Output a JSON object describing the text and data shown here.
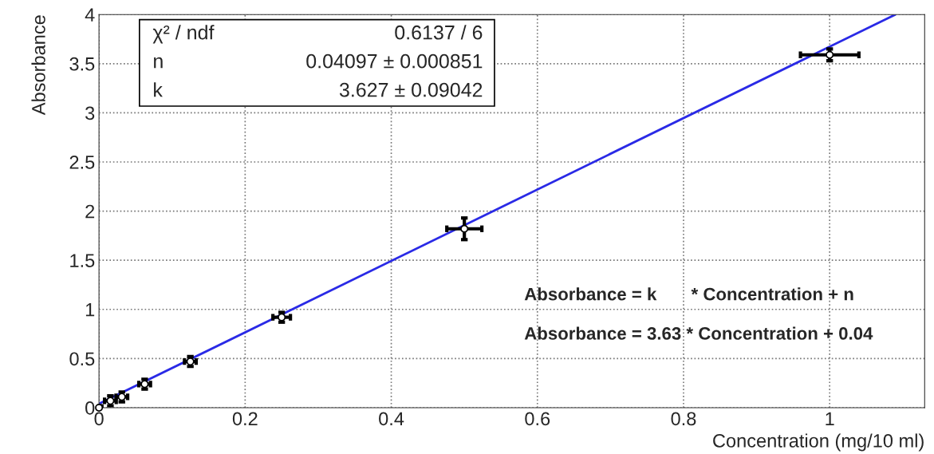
{
  "chart_data": {
    "type": "scatter",
    "xlabel": "Concentration (mg/10 ml)",
    "ylabel": "Absorbance",
    "x": [
      0,
      0.0156,
      0.03125,
      0.0625,
      0.125,
      0.25,
      0.5,
      1
    ],
    "series": [
      {
        "color": "#000000",
        "marker": "circle",
        "values": [
          0,
          0.07,
          0.11,
          0.24,
          0.47,
          0.92,
          1.82,
          3.59
        ],
        "errors": [
          0.02,
          0.05,
          0.05,
          0.05,
          0.05,
          0.05,
          0.11,
          0.06
        ],
        "xerrors": [
          0.004,
          0.008,
          0.008,
          0.008,
          0.008,
          0.012,
          0.024,
          0.04
        ]
      },
      {
        "type": "line",
        "color": "#2a2ae6",
        "x": [
          0,
          1.09
        ],
        "values": [
          0.04,
          4.0
        ],
        "line_style": "solid"
      }
    ],
    "xlim": [
      0,
      1.13
    ],
    "ylim": [
      0,
      4
    ],
    "xticks": [
      0,
      0.2,
      0.4,
      0.6,
      0.8,
      1
    ],
    "yticks": [
      0,
      0.5,
      1,
      1.5,
      2,
      2.5,
      3,
      3.5,
      4
    ],
    "grid": true,
    "annotations": [
      "χ² / ndf",
      "0.6137 / 6",
      "n",
      "0.04097 ± 0.000851",
      "k",
      "3.627 ± 0.09042",
      "Absorbance = k       * Concentration + n",
      "Absorbance = 3.63 * Concentration + 0.04"
    ]
  }
}
